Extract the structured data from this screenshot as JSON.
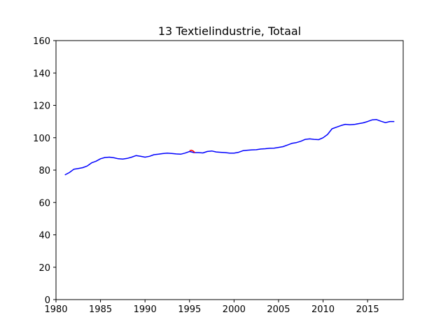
{
  "chart_data": {
    "type": "line",
    "title": "13 Textielindustrie, Totaal",
    "xlabel": "",
    "ylabel": "",
    "xlim": [
      1980,
      2019
    ],
    "ylim": [
      0,
      160
    ],
    "xticks": [
      1980,
      1985,
      1990,
      1995,
      2000,
      2005,
      2010,
      2015
    ],
    "yticks": [
      0,
      20,
      40,
      60,
      80,
      100,
      120,
      140,
      160
    ],
    "grid": false,
    "series": [
      {
        "color": "#0000ff",
        "x": [
          1981.0,
          1981.5,
          1982.0,
          1982.5,
          1983.0,
          1983.5,
          1984.0,
          1984.5,
          1985.0,
          1985.5,
          1986.0,
          1986.5,
          1987.0,
          1987.5,
          1988.0,
          1988.5,
          1989.0,
          1989.5,
          1990.0,
          1990.5,
          1991.0,
          1991.5,
          1992.0,
          1992.5,
          1993.0,
          1993.5,
          1994.0,
          1994.5,
          1995.0,
          1995.5,
          1996.0,
          1996.5,
          1997.0,
          1997.5,
          1998.0,
          1998.5,
          1999.0,
          1999.5,
          2000.0,
          2000.5,
          2001.0,
          2001.5,
          2002.0,
          2002.5,
          2003.0,
          2003.5,
          2004.0,
          2004.5,
          2005.0,
          2005.5,
          2006.0,
          2006.5,
          2007.0,
          2007.5,
          2008.0,
          2008.5,
          2009.0,
          2009.5,
          2010.0,
          2010.5,
          2011.0,
          2011.5,
          2012.0,
          2012.5,
          2013.0,
          2013.5,
          2014.0,
          2014.5,
          2015.0,
          2015.5,
          2016.0,
          2016.5,
          2017.0,
          2017.5,
          2018.0
        ],
        "y": [
          77.0,
          78.5,
          80.5,
          81.0,
          81.5,
          82.5,
          84.5,
          85.5,
          87.0,
          87.8,
          88.0,
          87.6,
          87.0,
          86.8,
          87.2,
          88.0,
          89.0,
          88.5,
          88.0,
          88.5,
          89.5,
          89.8,
          90.2,
          90.5,
          90.3,
          90.0,
          89.8,
          90.5,
          91.5,
          90.8,
          90.8,
          90.6,
          91.5,
          91.8,
          91.2,
          91.0,
          90.8,
          90.5,
          90.5,
          91.0,
          92.0,
          92.3,
          92.5,
          92.6,
          93.0,
          93.2,
          93.5,
          93.6,
          94.0,
          94.5,
          95.5,
          96.5,
          97.0,
          97.8,
          99.0,
          99.3,
          99.0,
          98.8,
          100.0,
          102.0,
          105.5,
          106.5,
          107.5,
          108.3,
          108.0,
          108.2,
          108.7,
          109.2,
          110.0,
          111.0,
          111.2,
          110.2,
          109.3,
          110.0,
          110.0
        ]
      },
      {
        "color": "#ff0000",
        "x": [
          1995.0,
          1995.2,
          1995.4,
          1995.6
        ],
        "y": [
          92.0,
          92.3,
          91.8,
          90.8
        ]
      }
    ]
  }
}
